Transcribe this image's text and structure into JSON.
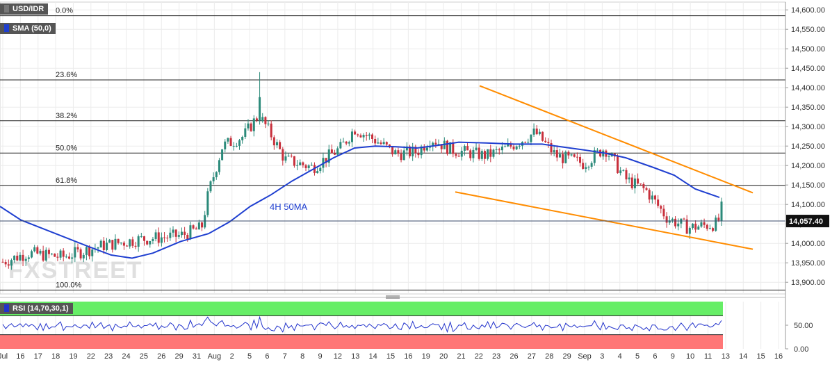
{
  "symbol": "USD/IDR",
  "sma_label": "SMA (50,0)",
  "rsi_label": "RSI (14,70,30,1)",
  "ma_annotation": "4H 50MA",
  "watermark": "FXSTREET",
  "last_price_label": "14,057.40",
  "colors": {
    "up": "#2b8a7a",
    "down": "#c8303c",
    "sma": "#1f3fd0",
    "trend": "#ff8c00",
    "rsi_line": "#2233cc",
    "rsi_over": "#66ee66",
    "rsi_under": "#ff7777"
  },
  "chart_data": {
    "type": "candlestick",
    "y_range": [
      13870,
      14620
    ],
    "y_ticks": [
      "14,600.00",
      "14,550.00",
      "14,500.00",
      "14,450.00",
      "14,400.00",
      "14,350.00",
      "14,300.00",
      "14,250.00",
      "14,200.00",
      "14,150.00",
      "14,100.00",
      "14,050.00",
      "14,000.00",
      "13,950.00",
      "13,900.00"
    ],
    "x_ticks": [
      "Jul",
      "16",
      "17",
      "18",
      "19",
      "22",
      "23",
      "24",
      "25",
      "26",
      "29",
      "31",
      "Aug",
      "2",
      "5",
      "6",
      "7",
      "8",
      "9",
      "12",
      "13",
      "14",
      "15",
      "16",
      "19",
      "20",
      "21",
      "22",
      "23",
      "26",
      "27",
      "28",
      "29",
      "Sep",
      "3",
      "4",
      "5",
      "6",
      "9",
      "10",
      "11",
      "13",
      "14",
      "15",
      "16"
    ],
    "fib_levels": [
      {
        "label": "0.0%",
        "value": 14585
      },
      {
        "label": "23.6%",
        "value": 14420
      },
      {
        "label": "38.2%",
        "value": 14315
      },
      {
        "label": "50.0%",
        "value": 14232
      },
      {
        "label": "61.8%",
        "value": 14149
      },
      {
        "label": "100.0%",
        "value": 13880
      }
    ],
    "last_price": 14057.4,
    "sma_points": [
      [
        0,
        14095
      ],
      [
        30,
        14060
      ],
      [
        80,
        14025
      ],
      [
        130,
        13990
      ],
      [
        160,
        13970
      ],
      [
        190,
        13962
      ],
      [
        220,
        13975
      ],
      [
        260,
        14005
      ],
      [
        300,
        14025
      ],
      [
        330,
        14055
      ],
      [
        360,
        14095
      ],
      [
        390,
        14125
      ],
      [
        420,
        14160
      ],
      [
        450,
        14190
      ],
      [
        480,
        14220
      ],
      [
        510,
        14245
      ],
      [
        540,
        14250
      ],
      [
        570,
        14248
      ],
      [
        600,
        14245
      ],
      [
        630,
        14252
      ],
      [
        660,
        14260
      ],
      [
        700,
        14258
      ],
      [
        740,
        14255
      ],
      [
        780,
        14255
      ],
      [
        800,
        14250
      ],
      [
        840,
        14240
      ],
      [
        870,
        14232
      ],
      [
        900,
        14220
      ],
      [
        940,
        14195
      ],
      [
        970,
        14175
      ],
      [
        1000,
        14140
      ],
      [
        1035,
        14118
      ]
    ],
    "trendline_upper": [
      [
        690,
        14405
      ],
      [
        1083,
        14130
      ]
    ],
    "trendline_lower": [
      [
        655,
        14132
      ],
      [
        1083,
        13985
      ]
    ],
    "rsi_range": [
      0,
      100
    ],
    "rsi_ticks": [
      "50.00",
      "0.00"
    ],
    "rsi_levels": {
      "overbought": 70,
      "oversold": 30
    }
  }
}
